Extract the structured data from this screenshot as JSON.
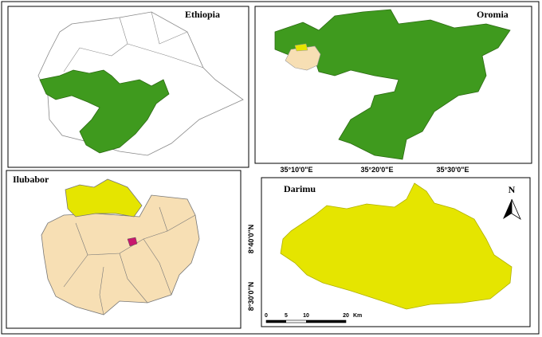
{
  "panels": {
    "ethiopia": {
      "title": "Ethiopia"
    },
    "oromia": {
      "title": "Oromia"
    },
    "ilubabor": {
      "title": "Ilubabor"
    },
    "darimu": {
      "title": "Darimu"
    }
  },
  "longitude_labels": [
    "35°10'0\"E",
    "35°20'0\"E",
    "35°30'0\"E"
  ],
  "latitude_labels": [
    "8°40'0\"N",
    "8°30'0\"N"
  ],
  "scale_bar": {
    "labels": [
      "0",
      "5",
      "10",
      "20"
    ],
    "unit": "Km"
  },
  "north_arrow": "N"
}
